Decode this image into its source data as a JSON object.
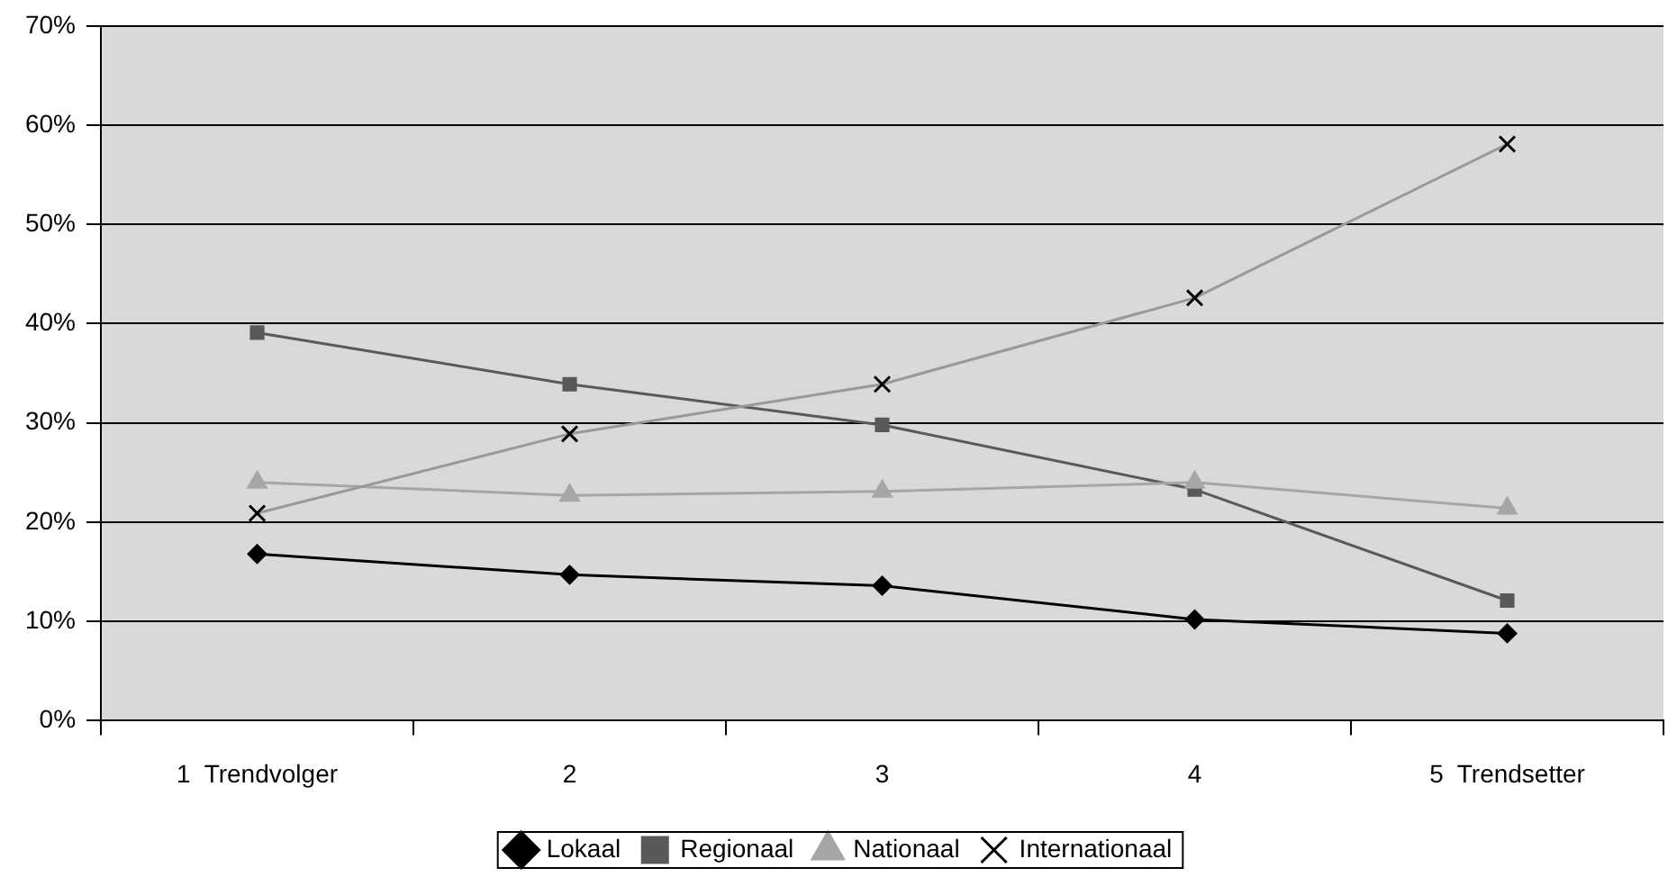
{
  "chart_data": {
    "type": "line",
    "categories": [
      "1  Trendvolger",
      "2",
      "3",
      "4",
      "5  Trendsetter"
    ],
    "series": [
      {
        "name": "Lokaal",
        "color": "#000000",
        "marker": "diamond",
        "values": [
          16.8,
          14.7,
          13.6,
          10.2,
          8.8
        ]
      },
      {
        "name": "Regionaal",
        "color": "#595959",
        "marker": "square",
        "values": [
          39.1,
          33.9,
          29.8,
          23.3,
          12.1
        ]
      },
      {
        "name": "Nationaal",
        "color": "#a6a6a6",
        "marker": "triangle",
        "values": [
          24,
          22.7,
          23.1,
          24,
          21.4
        ]
      },
      {
        "name": "Internationaal",
        "color": "#999999",
        "marker": "cross",
        "values": [
          20.9,
          28.9,
          33.9,
          42.6,
          58.1
        ]
      }
    ],
    "ylim": [
      0,
      70
    ],
    "yticks": [
      {
        "value": 0,
        "label": "0%"
      },
      {
        "value": 10,
        "label": "10%"
      },
      {
        "value": 20,
        "label": "20%"
      },
      {
        "value": 30,
        "label": "30%"
      },
      {
        "value": 40,
        "label": "40%"
      },
      {
        "value": 50,
        "label": "50%"
      },
      {
        "value": 60,
        "label": "60%"
      },
      {
        "value": 70,
        "label": "70%"
      }
    ],
    "grid": "y",
    "legend": "bottom",
    "line_style": "solid"
  }
}
